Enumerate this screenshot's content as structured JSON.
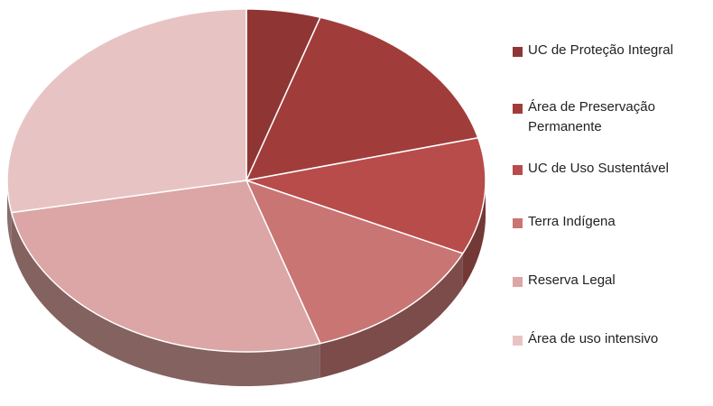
{
  "chart_data": {
    "type": "pie",
    "categories": [
      "UC de Proteção Integral",
      "Área de Preservação Permanente",
      "UC de Uso Sustentável",
      "Terra Indígena",
      "Reserva Legal",
      "Área de uso intensivo"
    ],
    "values": [
      5,
      16,
      11,
      13,
      27,
      28
    ],
    "colors": [
      "#8f3634",
      "#a03d3b",
      "#b84c4a",
      "#c97573",
      "#dba6a5",
      "#e7c4c3"
    ],
    "legend": "right"
  }
}
